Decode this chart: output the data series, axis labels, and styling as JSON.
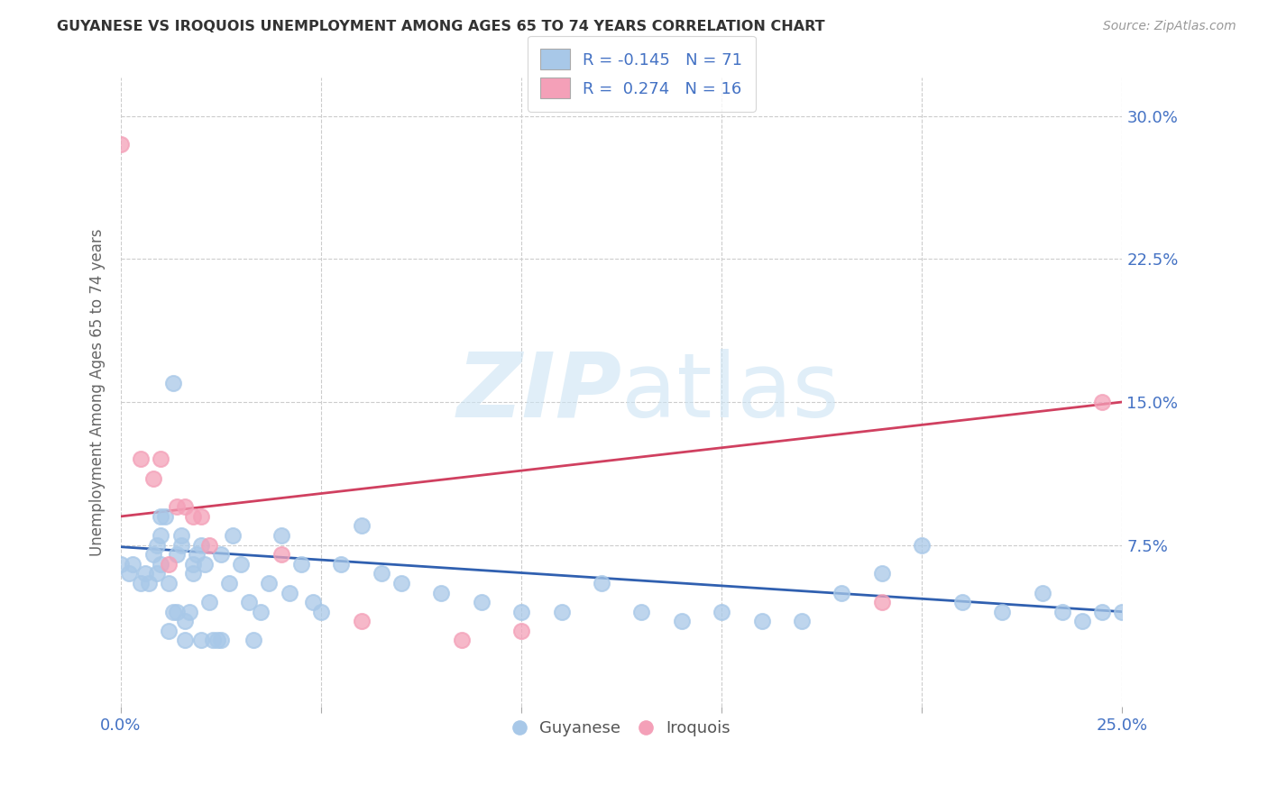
{
  "title": "GUYANESE VS IROQUOIS UNEMPLOYMENT AMONG AGES 65 TO 74 YEARS CORRELATION CHART",
  "source": "Source: ZipAtlas.com",
  "ylabel": "Unemployment Among Ages 65 to 74 years",
  "xlim": [
    0.0,
    0.25
  ],
  "ylim": [
    -0.01,
    0.32
  ],
  "xticks": [
    0.0,
    0.05,
    0.1,
    0.15,
    0.2,
    0.25
  ],
  "yticks": [
    0.075,
    0.15,
    0.225,
    0.3
  ],
  "ytick_labels": [
    "7.5%",
    "15.0%",
    "22.5%",
    "30.0%"
  ],
  "xtick_labels": [
    "0.0%",
    "",
    "",
    "",
    "",
    "25.0%"
  ],
  "guyanese_R": -0.145,
  "guyanese_N": 71,
  "iroquois_R": 0.274,
  "iroquois_N": 16,
  "guyanese_color": "#a8c8e8",
  "iroquois_color": "#f4a0b8",
  "trend_guyanese_color": "#3060b0",
  "trend_iroquois_color": "#d04060",
  "watermark_color": "#cce4f4",
  "guyanese_x": [
    0.0,
    0.002,
    0.003,
    0.005,
    0.006,
    0.007,
    0.008,
    0.009,
    0.009,
    0.01,
    0.01,
    0.01,
    0.011,
    0.012,
    0.012,
    0.013,
    0.013,
    0.014,
    0.014,
    0.015,
    0.015,
    0.016,
    0.016,
    0.017,
    0.018,
    0.018,
    0.019,
    0.02,
    0.02,
    0.021,
    0.022,
    0.023,
    0.024,
    0.025,
    0.025,
    0.027,
    0.028,
    0.03,
    0.032,
    0.033,
    0.035,
    0.037,
    0.04,
    0.042,
    0.045,
    0.048,
    0.05,
    0.055,
    0.06,
    0.065,
    0.07,
    0.08,
    0.09,
    0.1,
    0.11,
    0.12,
    0.13,
    0.14,
    0.15,
    0.16,
    0.17,
    0.18,
    0.19,
    0.2,
    0.21,
    0.22,
    0.23,
    0.235,
    0.24,
    0.245,
    0.25
  ],
  "guyanese_y": [
    0.065,
    0.06,
    0.065,
    0.055,
    0.06,
    0.055,
    0.07,
    0.075,
    0.06,
    0.08,
    0.065,
    0.09,
    0.09,
    0.055,
    0.03,
    0.04,
    0.16,
    0.04,
    0.07,
    0.075,
    0.08,
    0.025,
    0.035,
    0.04,
    0.065,
    0.06,
    0.07,
    0.025,
    0.075,
    0.065,
    0.045,
    0.025,
    0.025,
    0.025,
    0.07,
    0.055,
    0.08,
    0.065,
    0.045,
    0.025,
    0.04,
    0.055,
    0.08,
    0.05,
    0.065,
    0.045,
    0.04,
    0.065,
    0.085,
    0.06,
    0.055,
    0.05,
    0.045,
    0.04,
    0.04,
    0.055,
    0.04,
    0.035,
    0.04,
    0.035,
    0.035,
    0.05,
    0.06,
    0.075,
    0.045,
    0.04,
    0.05,
    0.04,
    0.035,
    0.04,
    0.04
  ],
  "iroquois_x": [
    0.0,
    0.005,
    0.008,
    0.01,
    0.012,
    0.014,
    0.016,
    0.018,
    0.02,
    0.022,
    0.04,
    0.06,
    0.085,
    0.1,
    0.19,
    0.245
  ],
  "iroquois_y": [
    0.285,
    0.12,
    0.11,
    0.12,
    0.065,
    0.095,
    0.095,
    0.09,
    0.09,
    0.075,
    0.07,
    0.035,
    0.025,
    0.03,
    0.045,
    0.15
  ],
  "trend_guyanese_x0": 0.0,
  "trend_guyanese_x1": 0.25,
  "trend_guyanese_y0": 0.074,
  "trend_guyanese_y1": 0.04,
  "trend_iroquois_x0": 0.0,
  "trend_iroquois_x1": 0.25,
  "trend_iroquois_y0": 0.09,
  "trend_iroquois_y1": 0.15
}
